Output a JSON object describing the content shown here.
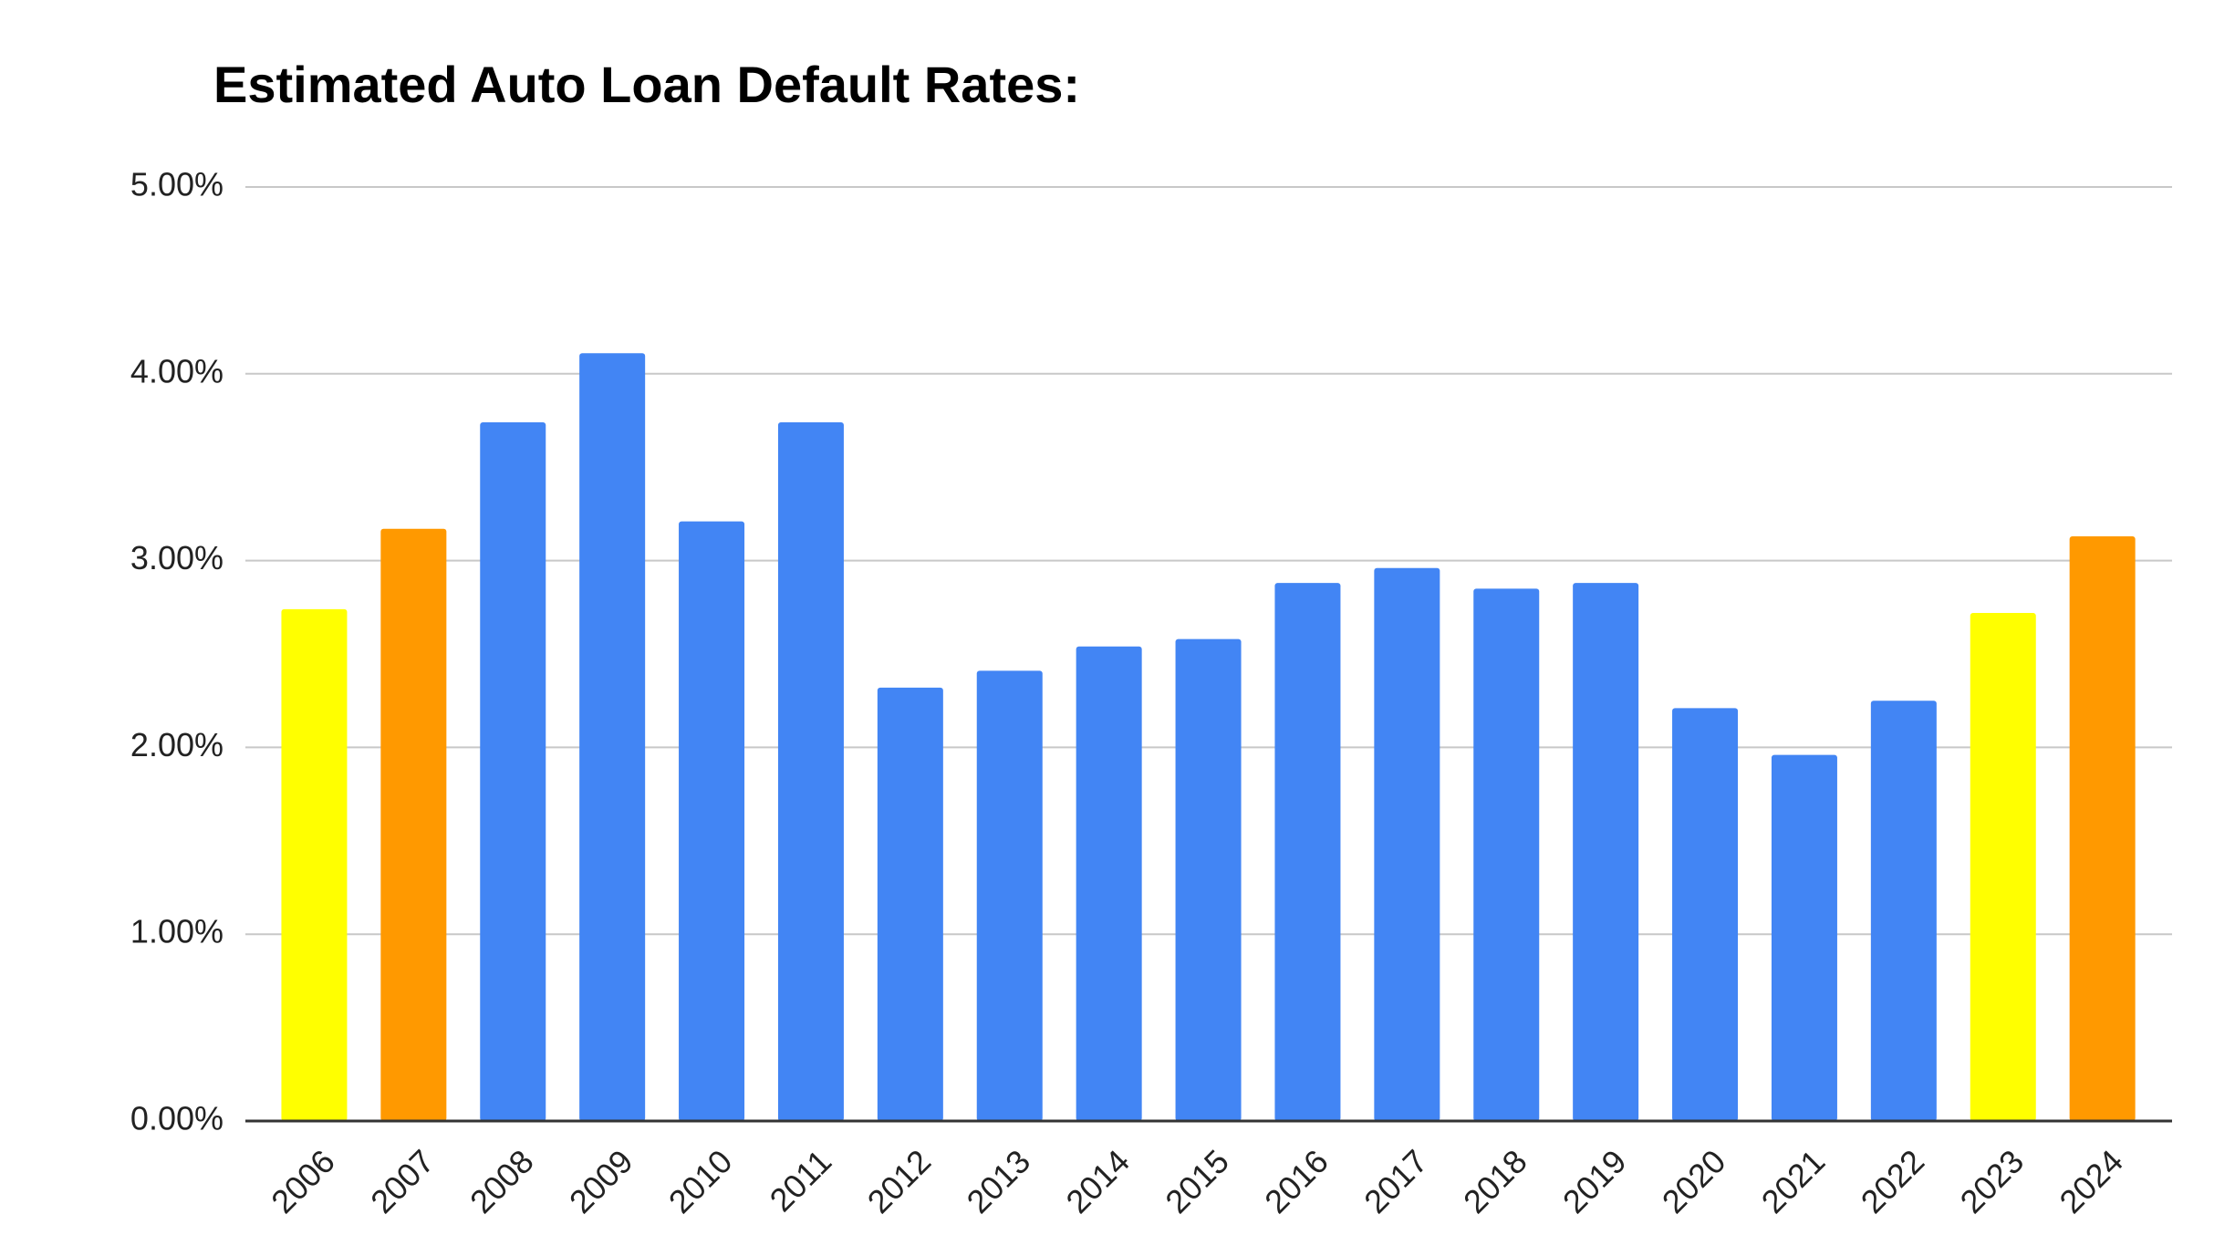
{
  "chart_data": {
    "type": "bar",
    "title": "Estimated Auto Loan Default Rates:",
    "categories": [
      "2006",
      "2007",
      "2008",
      "2009",
      "2010",
      "2011",
      "2012",
      "2013",
      "2014",
      "2015",
      "2016",
      "2017",
      "2018",
      "2019",
      "2020",
      "2021",
      "2022",
      "2023",
      "2024"
    ],
    "values": [
      2.74,
      3.17,
      3.74,
      4.11,
      3.21,
      3.74,
      2.32,
      2.41,
      2.54,
      2.58,
      2.88,
      2.96,
      2.85,
      2.88,
      2.21,
      1.96,
      2.25,
      2.72,
      3.13
    ],
    "colors": [
      "#ffff00",
      "#ff9900",
      "#4285f4",
      "#4285f4",
      "#4285f4",
      "#4285f4",
      "#4285f4",
      "#4285f4",
      "#4285f4",
      "#4285f4",
      "#4285f4",
      "#4285f4",
      "#4285f4",
      "#4285f4",
      "#4285f4",
      "#4285f4",
      "#4285f4",
      "#ffff00",
      "#ff9900"
    ],
    "ylim": [
      0,
      5
    ],
    "yticks": [
      {
        "value": 0,
        "label": "0.00%"
      },
      {
        "value": 1,
        "label": "1.00%"
      },
      {
        "value": 2,
        "label": "2.00%"
      },
      {
        "value": 3,
        "label": "3.00%"
      },
      {
        "value": 4,
        "label": "4.00%"
      },
      {
        "value": 5,
        "label": "5.00%"
      }
    ],
    "grid": true
  }
}
